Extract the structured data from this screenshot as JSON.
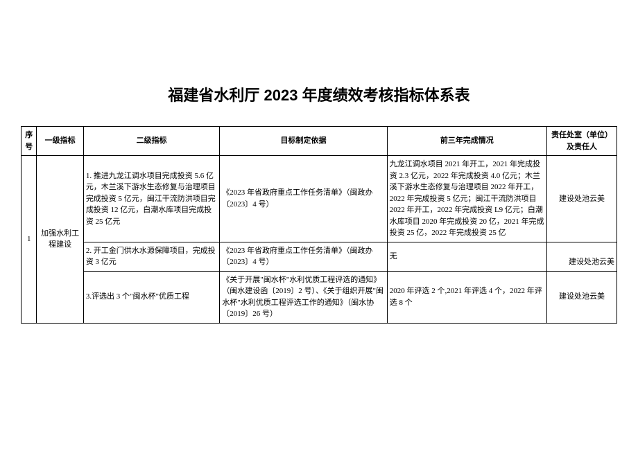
{
  "title": "福建省水利厅 2023 年度绩效考核指标体系表",
  "columns": {
    "seq": "序号",
    "level1": "一级指标",
    "level2": "二级指标",
    "basis": "目标制定依据",
    "prev3": "前三年完成情况",
    "responsible": "责任处室（单位）及责任人"
  },
  "rows": [
    {
      "seq": "1",
      "level1": "加强水利工程建设",
      "items": [
        {
          "level2": "1. 推进九龙江调水项目完成投资 5.6 亿元，木兰溪下游水生态修复与治理项目完成投资 5 亿元，闽江干流防洪项目完成投资 12 亿元，白潮水库项目完成投资 25 亿元",
          "basis": "《2023 年省政府重点工作任务清单》（闽政办〔2023〕4 号）",
          "prev3": "九龙江调水项目 2021 年开工，2021 年完成投资 2.3 亿元，2022 年完成投资 4.0 亿元；木兰溪下游水生态修复与治理项目 2022 年开工，2022 年完成投资 5 亿元；闽江干流防洪项目 2022 年开工，2022 年完成投资 L9 亿元；白潮水库项目 2020 年完成投资 20 亿，2021 年完成投资 25 亿，2022 年完成投资 25 亿",
          "responsible": "建设处池云美"
        },
        {
          "level2": "2. 开工金门供水水源保障项目，完成投资 3 亿元",
          "basis": "《2023 年省政府重点工作任务清单》（闽政办〔2023〕4 号）",
          "prev3": "无",
          "responsible": "建设处池云美"
        },
        {
          "level2": "3.评选出 3 个\"闽水杯\"优质工程",
          "basis": "《关于开展\"闽水杯\"水利优质工程评选的通知》（闽水建设函〔2019〕2 号）、《关于组织开展\"闽水杯\"水利优质工程评选工作的通知》（闽水协〔2019〕26 号）",
          "prev3": "2020 年评选 2 个,2021 年评选 4 个，2022 年评选 8 个",
          "responsible": "建设处池云美"
        }
      ]
    }
  ]
}
